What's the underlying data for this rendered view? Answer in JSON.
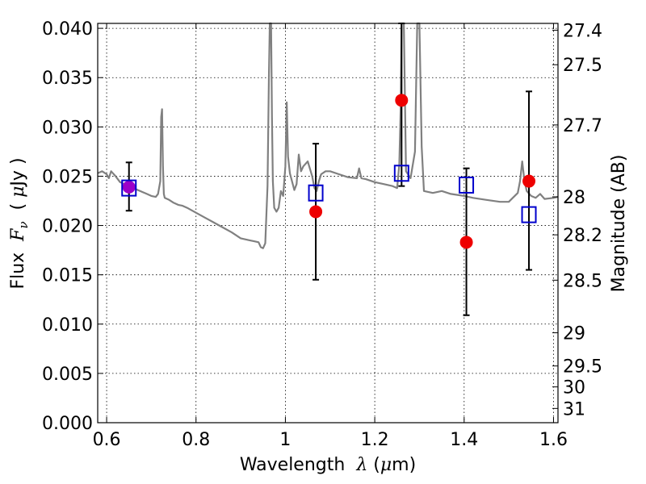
{
  "chart_data": {
    "type": "scatter",
    "xlabel": {
      "prefix": "Wavelength  ",
      "symbol": "λ",
      "suffix": " (",
      "unit_sym": "μ",
      "unit": "m)"
    },
    "ylabel": {
      "prefix": "Flux  ",
      "symbol": "F",
      "sub": "ν",
      "mid": "  ( ",
      "unit_sym": "μ",
      "unit": "Jy )"
    },
    "ylabel_right": "Magnitude (AB)",
    "xlim": [
      0.58,
      1.61
    ],
    "ylim": [
      0.0,
      0.0405
    ],
    "grid": true,
    "grid_style": "dotted",
    "x_ticks": [
      {
        "value": 0.6,
        "label": "0.6"
      },
      {
        "value": 0.8,
        "label": "0.8"
      },
      {
        "value": 1.0,
        "label": "1"
      },
      {
        "value": 1.2,
        "label": "1.2"
      },
      {
        "value": 1.4,
        "label": "1.4"
      },
      {
        "value": 1.6,
        "label": "1.6"
      }
    ],
    "y_ticks": [
      {
        "value": 0.0,
        "label": "0.000"
      },
      {
        "value": 0.005,
        "label": "0.005"
      },
      {
        "value": 0.01,
        "label": "0.010"
      },
      {
        "value": 0.015,
        "label": "0.015"
      },
      {
        "value": 0.02,
        "label": "0.020"
      },
      {
        "value": 0.025,
        "label": "0.025"
      },
      {
        "value": 0.03,
        "label": "0.030"
      },
      {
        "value": 0.035,
        "label": "0.035"
      },
      {
        "value": 0.04,
        "label": "0.040"
      }
    ],
    "right_ticks": [
      {
        "mag": 27.4,
        "label": "27.4"
      },
      {
        "mag": 27.5,
        "label": "27.5"
      },
      {
        "mag": 27.7,
        "label": "27.7"
      },
      {
        "mag": 28.0,
        "label": "28"
      },
      {
        "mag": 28.2,
        "label": "28.2"
      },
      {
        "mag": 28.5,
        "label": "28.5"
      },
      {
        "mag": 29.0,
        "label": "29"
      },
      {
        "mag": 29.5,
        "label": "29.5"
      },
      {
        "mag": 30.0,
        "label": "30"
      },
      {
        "mag": 31.0,
        "label": "31"
      }
    ],
    "series": [
      {
        "type": "line",
        "color": "#808080",
        "x": [
          0.58,
          0.59,
          0.6,
          0.605,
          0.61,
          0.62,
          0.63,
          0.64,
          0.65,
          0.66,
          0.67,
          0.68,
          0.69,
          0.7,
          0.71,
          0.715,
          0.72,
          0.722,
          0.724,
          0.726,
          0.728,
          0.73,
          0.74,
          0.75,
          0.76,
          0.77,
          0.78,
          0.8,
          0.82,
          0.84,
          0.86,
          0.88,
          0.9,
          0.92,
          0.93,
          0.94,
          0.945,
          0.95,
          0.955,
          0.96,
          0.963,
          0.965,
          0.968,
          0.97,
          0.972,
          0.975,
          0.98,
          0.985,
          0.99,
          0.995,
          1.0,
          1.003,
          1.006,
          1.01,
          1.02,
          1.025,
          1.03,
          1.035,
          1.04,
          1.05,
          1.06,
          1.065,
          1.07,
          1.075,
          1.08,
          1.09,
          1.1,
          1.12,
          1.14,
          1.16,
          1.165,
          1.17,
          1.18,
          1.2,
          1.22,
          1.24,
          1.25,
          1.255,
          1.258,
          1.26,
          1.265,
          1.27,
          1.28,
          1.29,
          1.295,
          1.3,
          1.305,
          1.31,
          1.33,
          1.35,
          1.37,
          1.4,
          1.42,
          1.45,
          1.48,
          1.5,
          1.52,
          1.525,
          1.53,
          1.535,
          1.54,
          1.55,
          1.56,
          1.57,
          1.58,
          1.6,
          1.61
        ],
        "y": [
          0.0253,
          0.0255,
          0.0252,
          0.0248,
          0.0255,
          0.025,
          0.0244,
          0.0242,
          0.024,
          0.0238,
          0.0236,
          0.0234,
          0.0232,
          0.023,
          0.0229,
          0.0232,
          0.0245,
          0.031,
          0.0318,
          0.026,
          0.0232,
          0.0228,
          0.0226,
          0.0223,
          0.0221,
          0.022,
          0.0218,
          0.0213,
          0.0208,
          0.0203,
          0.0198,
          0.0193,
          0.0187,
          0.0185,
          0.0184,
          0.0183,
          0.0178,
          0.0177,
          0.0182,
          0.024,
          0.035,
          0.0405,
          0.0405,
          0.031,
          0.0245,
          0.0218,
          0.0214,
          0.0218,
          0.0235,
          0.023,
          0.026,
          0.0325,
          0.027,
          0.0253,
          0.0236,
          0.0242,
          0.0272,
          0.0255,
          0.026,
          0.0265,
          0.025,
          0.0238,
          0.0235,
          0.0245,
          0.0252,
          0.0255,
          0.0255,
          0.0252,
          0.0249,
          0.0248,
          0.0258,
          0.0248,
          0.0247,
          0.0244,
          0.0242,
          0.024,
          0.0238,
          0.0262,
          0.032,
          0.0405,
          0.0405,
          0.0255,
          0.0248,
          0.0275,
          0.0405,
          0.0405,
          0.028,
          0.0235,
          0.0233,
          0.0235,
          0.0232,
          0.023,
          0.0228,
          0.0226,
          0.0224,
          0.0224,
          0.0233,
          0.0245,
          0.0265,
          0.0245,
          0.0235,
          0.023,
          0.0228,
          0.0232,
          0.0227,
          0.0228,
          0.0229
        ]
      },
      {
        "type": "errorbar",
        "color": "#000000",
        "points": [
          {
            "x": 0.65,
            "y": 0.0239,
            "lo": 0.0215,
            "hi": 0.0264
          },
          {
            "x": 1.068,
            "y": 0.0214,
            "lo": 0.0145,
            "hi": 0.0283
          },
          {
            "x": 1.26,
            "y": 0.0327,
            "lo": 0.024,
            "hi": 0.0405
          },
          {
            "x": 1.405,
            "y": 0.0183,
            "lo": 0.0109,
            "hi": 0.0258
          },
          {
            "x": 1.545,
            "y": 0.0245,
            "lo": 0.0155,
            "hi": 0.0336
          }
        ]
      },
      {
        "type": "scatter",
        "marker": "circle",
        "colors": [
          "#9b00c8",
          "#ee0000",
          "#ee0000",
          "#ee0000",
          "#ee0000"
        ],
        "x": [
          0.65,
          1.068,
          1.26,
          1.405,
          1.545
        ],
        "y": [
          0.0239,
          0.0214,
          0.0327,
          0.0183,
          0.0245
        ]
      },
      {
        "type": "scatter",
        "marker": "open-square",
        "color": "#0000cc",
        "x": [
          0.65,
          1.068,
          1.26,
          1.405,
          1.545
        ],
        "y": [
          0.0238,
          0.0233,
          0.0253,
          0.0241,
          0.0211
        ]
      }
    ]
  }
}
